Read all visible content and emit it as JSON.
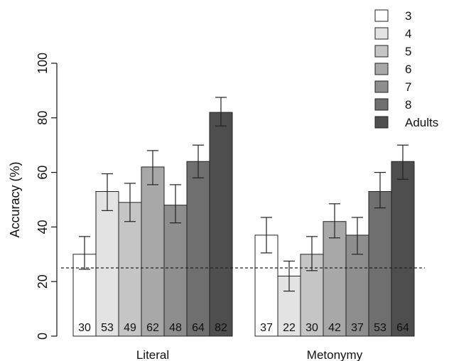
{
  "chart_data": {
    "type": "bar",
    "categories": [
      "Literal",
      "Metonymy"
    ],
    "series": [
      {
        "name": "3",
        "values": [
          30,
          37
        ],
        "err": [
          [
            24.5,
            36.5
          ],
          [
            30.5,
            43.5
          ]
        ],
        "color": "#ffffff"
      },
      {
        "name": "4",
        "values": [
          53,
          22
        ],
        "err": [
          [
            46,
            59.5
          ],
          [
            16.5,
            27.5
          ]
        ],
        "color": "#e3e3e3"
      },
      {
        "name": "5",
        "values": [
          49,
          30
        ],
        "err": [
          [
            42,
            56
          ],
          [
            24,
            36.5
          ]
        ],
        "color": "#c5c5c5"
      },
      {
        "name": "6",
        "values": [
          62,
          42
        ],
        "err": [
          [
            55.5,
            68
          ],
          [
            36,
            48.5
          ]
        ],
        "color": "#a8a8a8"
      },
      {
        "name": "7",
        "values": [
          48,
          37
        ],
        "err": [
          [
            41.5,
            55.5
          ],
          [
            30,
            43.5
          ]
        ],
        "color": "#8e8e8e"
      },
      {
        "name": "8",
        "values": [
          64,
          53
        ],
        "err": [
          [
            58,
            70
          ],
          [
            47,
            60
          ]
        ],
        "color": "#6f6f6f"
      },
      {
        "name": "Adults",
        "values": [
          82,
          64
        ],
        "err": [
          [
            77,
            87.5
          ],
          [
            57.5,
            70
          ]
        ],
        "color": "#4e4e4e"
      }
    ],
    "bar_labels": [
      [
        "30",
        "53",
        "49",
        "62",
        "48",
        "64",
        "82"
      ],
      [
        "37",
        "22",
        "30",
        "42",
        "37",
        "53",
        "64"
      ]
    ],
    "ylabel": "Accuracy (%)",
    "xlabel": "",
    "title": "",
    "ylim": [
      0,
      100
    ],
    "yticks": [
      "0",
      "20",
      "40",
      "60",
      "80",
      "100"
    ],
    "reference_line": 25,
    "grid": false,
    "legend_position": "top-right"
  }
}
